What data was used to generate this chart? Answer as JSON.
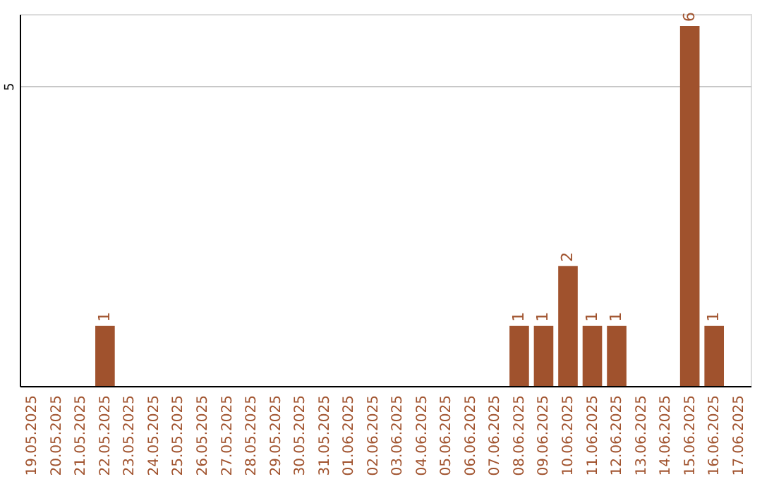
{
  "chart_data": {
    "type": "bar",
    "categories": [
      "19.05.2025",
      "20.05.2025",
      "21.05.2025",
      "22.05.2025",
      "23.05.2025",
      "24.05.2025",
      "25.05.2025",
      "26.05.2025",
      "27.05.2025",
      "28.05.2025",
      "29.05.2025",
      "30.05.2025",
      "31.05.2025",
      "01.06.2025",
      "02.06.2025",
      "03.06.2025",
      "04.06.2025",
      "05.06.2025",
      "06.06.2025",
      "07.06.2025",
      "08.06.2025",
      "09.06.2025",
      "10.06.2025",
      "11.06.2025",
      "12.06.2025",
      "13.06.2025",
      "14.06.2025",
      "15.06.2025",
      "16.06.2025",
      "17.06.2025"
    ],
    "values": [
      null,
      null,
      null,
      1,
      null,
      null,
      null,
      null,
      null,
      null,
      null,
      null,
      null,
      null,
      null,
      null,
      null,
      null,
      null,
      null,
      1,
      1,
      2,
      1,
      1,
      null,
      null,
      6,
      1,
      null
    ],
    "color": "#a0522d",
    "ylim": [
      0,
      6.2
    ],
    "yticks": [
      5
    ],
    "grid": "y",
    "data_labels": true
  }
}
